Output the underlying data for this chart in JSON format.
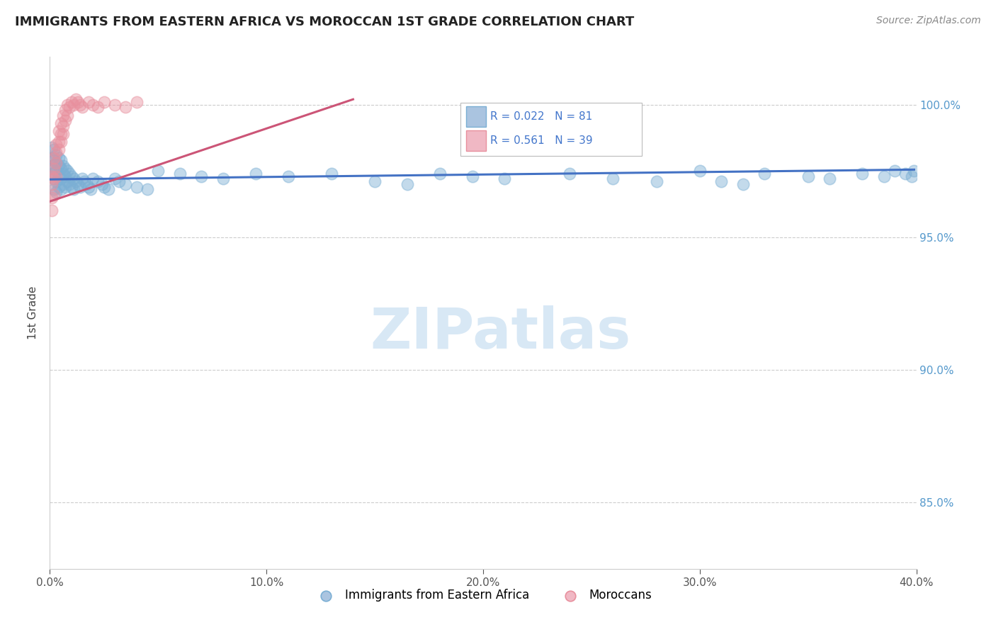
{
  "title": "IMMIGRANTS FROM EASTERN AFRICA VS MOROCCAN 1ST GRADE CORRELATION CHART",
  "source": "Source: ZipAtlas.com",
  "ylabel": "1st Grade",
  "xlim": [
    0.0,
    0.4
  ],
  "ylim": [
    0.825,
    1.018
  ],
  "xtick_labels": [
    "0.0%",
    "10.0%",
    "20.0%",
    "30.0%",
    "40.0%"
  ],
  "xtick_vals": [
    0.0,
    0.1,
    0.2,
    0.3,
    0.4
  ],
  "ytick_labels": [
    "85.0%",
    "90.0%",
    "95.0%",
    "100.0%"
  ],
  "ytick_vals": [
    0.85,
    0.9,
    0.95,
    1.0
  ],
  "grid_yticks": [
    0.85,
    0.9,
    0.95,
    1.0
  ],
  "grid_color": "#cccccc",
  "blue_color": "#7bafd4",
  "pink_color": "#e8909e",
  "blue_line_color": "#4472c4",
  "pink_line_color": "#cc5577",
  "blue_R": 0.022,
  "blue_N": 81,
  "pink_R": 0.561,
  "pink_N": 39,
  "legend_label_blue": "Immigrants from Eastern Africa",
  "legend_label_pink": "Moroccans",
  "watermark": "ZIPatlas",
  "blue_points_x": [
    0.001,
    0.001,
    0.001,
    0.001,
    0.002,
    0.002,
    0.002,
    0.002,
    0.002,
    0.003,
    0.003,
    0.003,
    0.003,
    0.003,
    0.004,
    0.004,
    0.004,
    0.004,
    0.005,
    0.005,
    0.005,
    0.005,
    0.006,
    0.006,
    0.006,
    0.007,
    0.007,
    0.007,
    0.008,
    0.008,
    0.009,
    0.009,
    0.01,
    0.01,
    0.011,
    0.011,
    0.012,
    0.013,
    0.014,
    0.015,
    0.016,
    0.017,
    0.018,
    0.019,
    0.02,
    0.022,
    0.024,
    0.025,
    0.027,
    0.03,
    0.032,
    0.035,
    0.04,
    0.045,
    0.05,
    0.06,
    0.07,
    0.08,
    0.095,
    0.11,
    0.13,
    0.15,
    0.165,
    0.18,
    0.195,
    0.21,
    0.24,
    0.26,
    0.28,
    0.3,
    0.31,
    0.32,
    0.33,
    0.35,
    0.36,
    0.375,
    0.385,
    0.39,
    0.395,
    0.398,
    0.399
  ],
  "blue_points_y": [
    0.984,
    0.98,
    0.977,
    0.974,
    0.983,
    0.979,
    0.976,
    0.972,
    0.968,
    0.981,
    0.978,
    0.975,
    0.971,
    0.967,
    0.98,
    0.977,
    0.973,
    0.969,
    0.979,
    0.976,
    0.972,
    0.968,
    0.977,
    0.974,
    0.97,
    0.976,
    0.973,
    0.969,
    0.975,
    0.971,
    0.974,
    0.97,
    0.973,
    0.969,
    0.972,
    0.968,
    0.971,
    0.97,
    0.969,
    0.972,
    0.971,
    0.97,
    0.969,
    0.968,
    0.972,
    0.971,
    0.97,
    0.969,
    0.968,
    0.972,
    0.971,
    0.97,
    0.969,
    0.968,
    0.975,
    0.974,
    0.973,
    0.972,
    0.974,
    0.973,
    0.974,
    0.971,
    0.97,
    0.974,
    0.973,
    0.972,
    0.974,
    0.972,
    0.971,
    0.975,
    0.971,
    0.97,
    0.974,
    0.973,
    0.972,
    0.974,
    0.973,
    0.975,
    0.974,
    0.973,
    0.975
  ],
  "pink_points_x": [
    0.001,
    0.001,
    0.001,
    0.001,
    0.002,
    0.002,
    0.002,
    0.002,
    0.003,
    0.003,
    0.003,
    0.003,
    0.004,
    0.004,
    0.004,
    0.005,
    0.005,
    0.005,
    0.006,
    0.006,
    0.006,
    0.007,
    0.007,
    0.008,
    0.008,
    0.009,
    0.01,
    0.011,
    0.012,
    0.013,
    0.014,
    0.015,
    0.018,
    0.02,
    0.022,
    0.025,
    0.03,
    0.035,
    0.04
  ],
  "pink_points_y": [
    0.97,
    0.973,
    0.965,
    0.96,
    0.976,
    0.98,
    0.972,
    0.966,
    0.982,
    0.985,
    0.978,
    0.973,
    0.986,
    0.99,
    0.983,
    0.989,
    0.993,
    0.986,
    0.992,
    0.996,
    0.989,
    0.994,
    0.998,
    0.996,
    1.0,
    0.999,
    1.001,
    1.0,
    1.002,
    1.001,
    1.0,
    0.999,
    1.001,
    1.0,
    0.999,
    1.001,
    1.0,
    0.999,
    1.001
  ],
  "blue_line_x": [
    0.0,
    0.399
  ],
  "blue_line_y": [
    0.9718,
    0.9755
  ],
  "pink_line_x": [
    0.0,
    0.14
  ],
  "pink_line_y": [
    0.9635,
    1.002
  ]
}
